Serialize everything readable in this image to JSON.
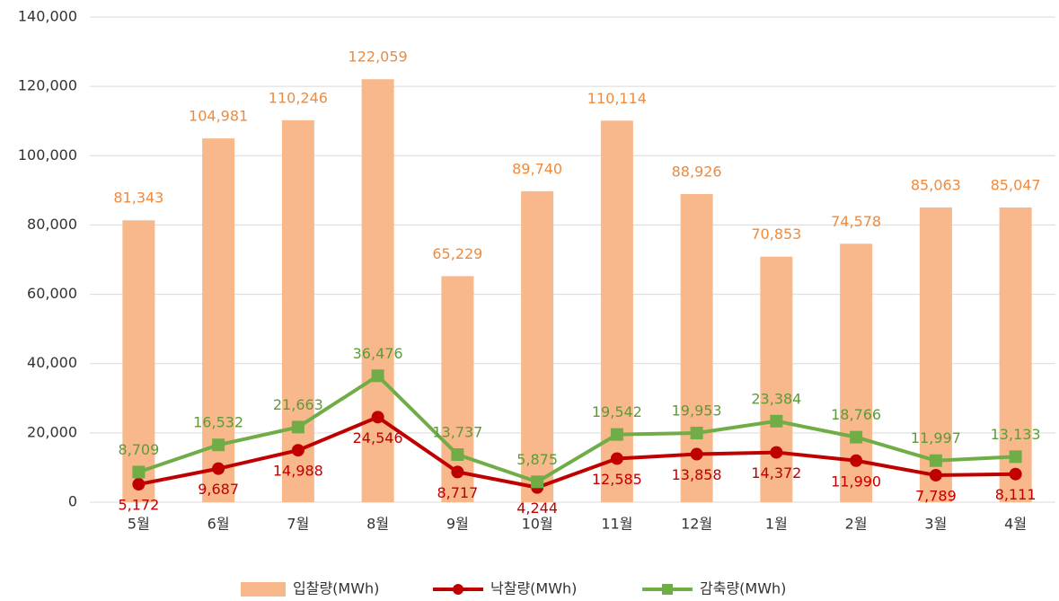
{
  "chart_data": {
    "type": "bar",
    "categories": [
      "5월",
      "6월",
      "7월",
      "8월",
      "9월",
      "10월",
      "11월",
      "12월",
      "1월",
      "2월",
      "3월",
      "4월"
    ],
    "series": [
      {
        "name": "입찰량(MWh)",
        "type": "bar",
        "color": "#f8b88b",
        "values": [
          81343,
          104981,
          110246,
          122059,
          65229,
          89740,
          110114,
          88926,
          70853,
          74578,
          85063,
          85047
        ],
        "value_labels": [
          "81,343",
          "104,981",
          "110,246",
          "122,059",
          "65,229",
          "89,740",
          "110,114",
          "88,926",
          "70,853",
          "74,578",
          "85,063",
          "85,047"
        ]
      },
      {
        "name": "낙찰량(MWh)",
        "type": "line",
        "color": "#c00000",
        "values": [
          5172,
          9687,
          14988,
          24546,
          8717,
          4244,
          12585,
          13858,
          14372,
          11990,
          7789,
          8111
        ],
        "value_labels": [
          "5,172",
          "9,687",
          "14,988",
          "24,546",
          "8,717",
          "4,244",
          "12,585",
          "13,858",
          "14,372",
          "11,990",
          "7,789",
          "8,111"
        ]
      },
      {
        "name": "감축량(MWh)",
        "type": "line",
        "color": "#70ad47",
        "values": [
          8709,
          16532,
          21663,
          36476,
          13737,
          5875,
          19542,
          19953,
          23384,
          18766,
          11997,
          13133
        ],
        "value_labels": [
          "8,709",
          "16,532",
          "21,663",
          "36,476",
          "13,737",
          "5,875",
          "19,542",
          "19,953",
          "23,384",
          "18,766",
          "11,997",
          "13,133"
        ]
      }
    ],
    "ylim": [
      0,
      140000
    ],
    "yticks": [
      0,
      {
        "value": 20000,
        "label": "20,000"
      },
      {
        "value": 40000,
        "label": "40,000"
      },
      {
        "value": 60000,
        "label": "60,000"
      },
      {
        "value": 80000,
        "label": "80,000"
      },
      {
        "value": 100000,
        "label": "100,000"
      },
      {
        "value": 120000,
        "label": "120,000"
      },
      {
        "value": 140000,
        "label": "140,000"
      }
    ],
    "grid": true,
    "legend": "bottom"
  }
}
